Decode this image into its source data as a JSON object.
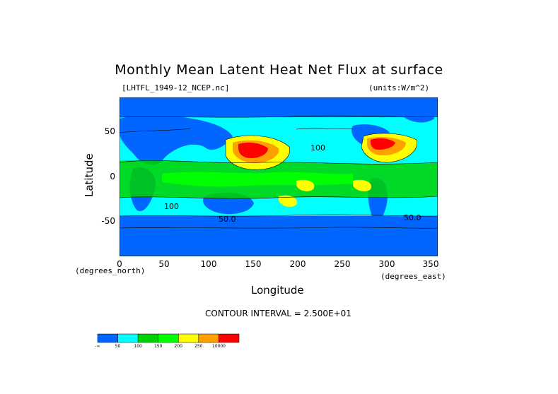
{
  "title": "Monthly Mean Latent Heat Net Flux at surface",
  "file_label": "[LHTFL_1949-12_NCEP.nc]",
  "units_label": "(units:W/m^2)",
  "x_axis": {
    "label": "Longitude",
    "unit_note": "(degrees_east)",
    "ticks": [
      "0",
      "50",
      "100",
      "150",
      "200",
      "250",
      "300",
      "350"
    ],
    "range": [
      0,
      357.5
    ]
  },
  "y_axis": {
    "label": "Latitude",
    "unit_note": "(degrees_north)",
    "ticks": [
      "50",
      "0",
      "-50"
    ],
    "range": [
      -88,
      88
    ]
  },
  "contour_labels": [
    "100",
    "100",
    "50.0",
    "50.0"
  ],
  "contour_interval": "CONTOUR INTERVAL = 2.500E+01",
  "colorbar": {
    "colors": [
      "#0066ff",
      "#00ffff",
      "#00d200",
      "#00ff00",
      "#ffff00",
      "#ffa000",
      "#ff0000"
    ],
    "labels": [
      "-∞",
      "50",
      "100",
      "150",
      "200",
      "250",
      "10000"
    ]
  },
  "colors": {
    "ocean_low": "#0066ff",
    "band_50": "#00ffff",
    "band_100": "#00d200",
    "band_150": "#00ff00",
    "band_200": "#ffff00",
    "band_250": "#ffa000",
    "band_high": "#ff0000"
  }
}
